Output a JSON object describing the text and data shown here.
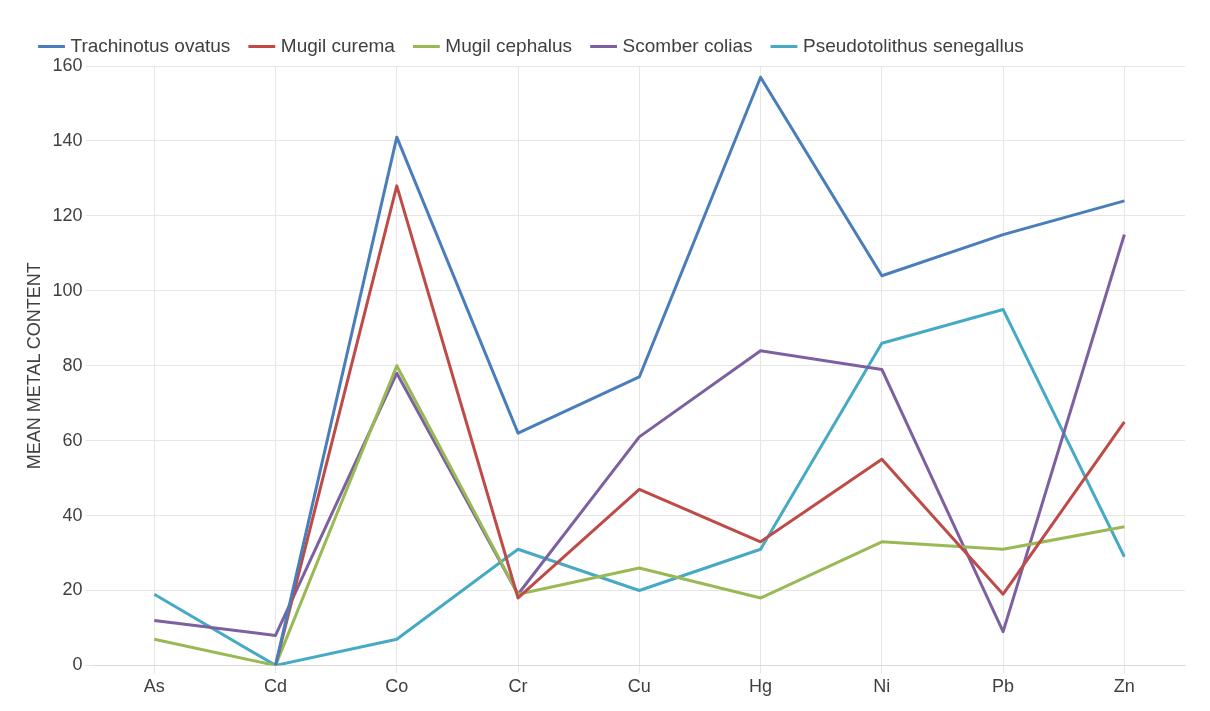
{
  "chart_data": {
    "type": "line",
    "ylabel": "MEAN METAL CONTENT",
    "categories": [
      "As",
      "Cd",
      "Co",
      "Cr",
      "Cu",
      "Hg",
      "Ni",
      "Pb",
      "Zn"
    ],
    "series": [
      {
        "name": "Trachinotus ovatus",
        "color": "#4a7ebb",
        "values": [
          null,
          0,
          141,
          62,
          77,
          157,
          104,
          115,
          124
        ]
      },
      {
        "name": "Mugil curema",
        "color": "#be4b48",
        "values": [
          null,
          0,
          128,
          18,
          47,
          33,
          55,
          19,
          65
        ]
      },
      {
        "name": "Mugil cephalus",
        "color": "#98b954",
        "values": [
          7,
          0,
          80,
          19,
          26,
          18,
          33,
          31,
          37
        ]
      },
      {
        "name": "Scomber colias",
        "color": "#7d60a0",
        "values": [
          12,
          8,
          78,
          19,
          61,
          84,
          79,
          9,
          115
        ]
      },
      {
        "name": "Pseudotolithus senegallus",
        "color": "#46aac5",
        "values": [
          19,
          0,
          7,
          31,
          20,
          31,
          86,
          95,
          29
        ]
      }
    ],
    "ylim": [
      0,
      160
    ],
    "yticks": [
      0,
      20,
      40,
      60,
      80,
      100,
      120,
      140,
      160
    ],
    "grid": true,
    "legend": "top left",
    "marker": "none",
    "line_style": "solid"
  }
}
